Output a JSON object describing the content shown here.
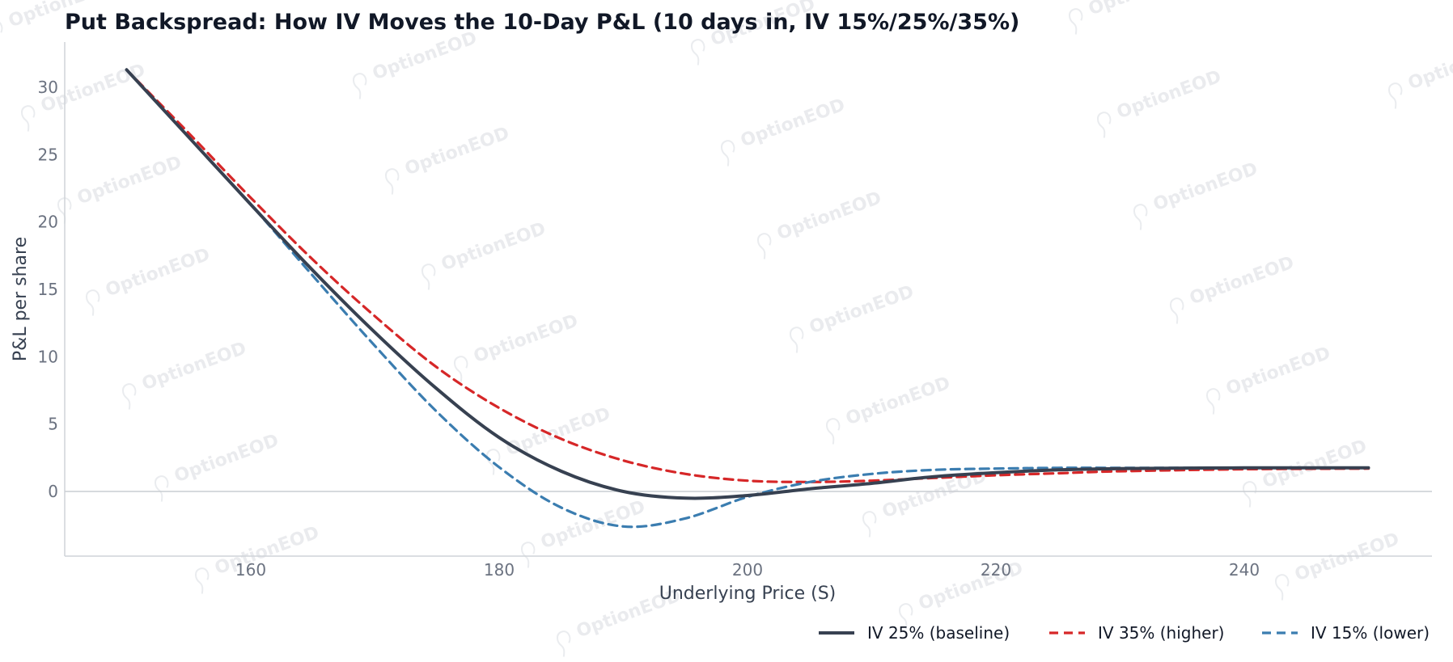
{
  "chart_data": {
    "type": "line",
    "title": "Put Backspread: How IV Moves the 10-Day P&L (10 days in, IV 15%/25%/35%)",
    "xlabel": "Underlying Price (S)",
    "ylabel": "P&L per share",
    "xlim": [
      145,
      255
    ],
    "ylim": [
      -5,
      33
    ],
    "x_ticks": [
      160,
      180,
      200,
      220,
      240
    ],
    "y_ticks": [
      0,
      5,
      10,
      15,
      20,
      25,
      30
    ],
    "grid": false,
    "zero_line": true,
    "legend_position": "bottom-right",
    "watermark": "OptionEOD",
    "x": [
      150,
      155,
      160,
      165,
      170,
      175,
      180,
      185,
      190,
      195,
      200,
      205,
      210,
      215,
      220,
      225,
      230,
      240,
      250
    ],
    "series": [
      {
        "name": "IV 25% (baseline)",
        "color": "#374151",
        "style": "solid",
        "values": [
          31.3,
          26.3,
          21.3,
          16.4,
          11.8,
          7.6,
          4.0,
          1.5,
          0.0,
          -0.5,
          -0.3,
          0.2,
          0.6,
          1.1,
          1.4,
          1.6,
          1.7,
          1.75,
          1.75
        ]
      },
      {
        "name": "IV 35% (higher)",
        "color": "#d62728",
        "style": "dashed",
        "values": [
          31.3,
          26.6,
          21.8,
          17.2,
          13.0,
          9.2,
          6.2,
          3.9,
          2.3,
          1.3,
          0.8,
          0.7,
          0.8,
          1.0,
          1.2,
          1.35,
          1.5,
          1.65,
          1.7
        ]
      },
      {
        "name": "IV 15% (lower)",
        "color": "#3b7db0",
        "style": "dashed",
        "values": [
          31.3,
          26.3,
          21.3,
          16.0,
          10.8,
          5.9,
          1.8,
          -1.2,
          -2.6,
          -2.0,
          -0.4,
          0.7,
          1.3,
          1.6,
          1.7,
          1.75,
          1.75,
          1.75,
          1.75
        ]
      }
    ]
  }
}
